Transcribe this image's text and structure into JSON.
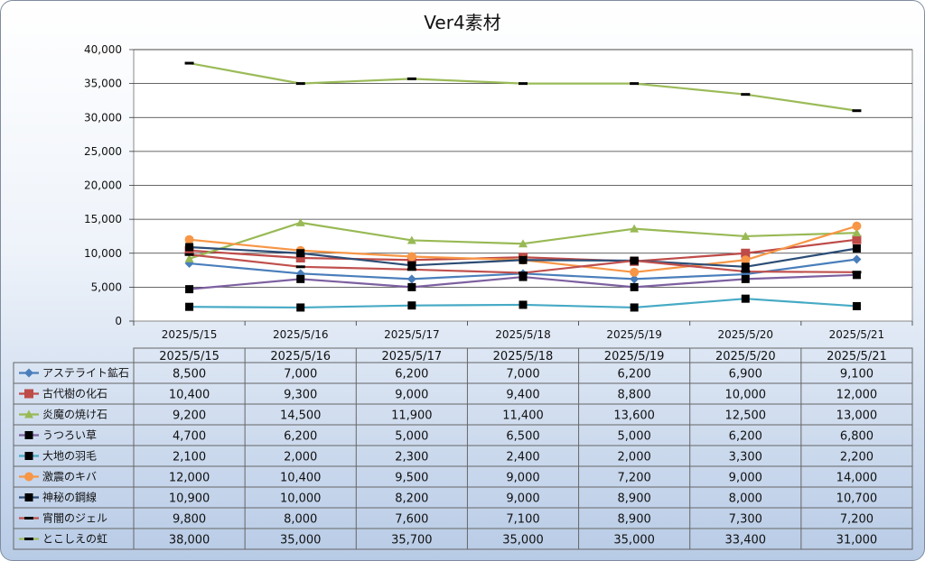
{
  "chart_data": {
    "type": "line",
    "title": "Ver4素材",
    "xlabel": "",
    "ylabel": "",
    "ylim": [
      0,
      40000
    ],
    "yticks": [
      "0",
      "5,000",
      "10,000",
      "15,000",
      "20,000",
      "25,000",
      "30,000",
      "35,000",
      "40,000"
    ],
    "categories": [
      "2025/5/15",
      "2025/5/16",
      "2025/5/17",
      "2025/5/18",
      "2025/5/19",
      "2025/5/20",
      "2025/5/21"
    ],
    "grid": "horizontal",
    "legend": "data-table",
    "series": [
      {
        "name": "アステライト鉱石",
        "color": "#4a7ebb",
        "marker": "diamond",
        "values": [
          8500,
          7000,
          6200,
          7000,
          6200,
          6900,
          9100
        ],
        "display": [
          "8,500",
          "7,000",
          "6,200",
          "7,000",
          "6,200",
          "6,900",
          "9,100"
        ]
      },
      {
        "name": "古代樹の化石",
        "color": "#be4b48",
        "marker": "square",
        "values": [
          10400,
          9300,
          9000,
          9400,
          8800,
          10000,
          12000
        ],
        "display": [
          "10,400",
          "9,300",
          "9,000",
          "9,400",
          "8,800",
          "10,000",
          "12,000"
        ]
      },
      {
        "name": "炎魔の焼け石",
        "color": "#98b954",
        "marker": "triangle",
        "values": [
          9200,
          14500,
          11900,
          11400,
          13600,
          12500,
          13000
        ],
        "display": [
          "9,200",
          "14,500",
          "11,900",
          "11,400",
          "13,600",
          "12,500",
          "13,000"
        ]
      },
      {
        "name": "うつろい草",
        "color": "#7d60a0",
        "marker": "blacksquare",
        "values": [
          4700,
          6200,
          5000,
          6500,
          5000,
          6200,
          6800
        ],
        "display": [
          "4,700",
          "6,200",
          "5,000",
          "6,500",
          "5,000",
          "6,200",
          "6,800"
        ]
      },
      {
        "name": "大地の羽毛",
        "color": "#46aac5",
        "marker": "blacksquare",
        "values": [
          2100,
          2000,
          2300,
          2400,
          2000,
          3300,
          2200
        ],
        "display": [
          "2,100",
          "2,000",
          "2,300",
          "2,400",
          "2,000",
          "3,300",
          "2,200"
        ]
      },
      {
        "name": "激震のキバ",
        "color": "#f79646",
        "marker": "circle",
        "values": [
          12000,
          10400,
          9500,
          9000,
          7200,
          9000,
          14000
        ],
        "display": [
          "12,000",
          "10,400",
          "9,500",
          "9,000",
          "7,200",
          "9,000",
          "14,000"
        ]
      },
      {
        "name": "神秘の鋼線",
        "color": "#2c4d75",
        "marker": "blacksquare",
        "values": [
          10900,
          10000,
          8200,
          9000,
          8900,
          8000,
          10700
        ],
        "display": [
          "10,900",
          "10,000",
          "8,200",
          "9,000",
          "8,900",
          "8,000",
          "10,700"
        ]
      },
      {
        "name": "宵闇のジェル",
        "color": "#c0504d",
        "marker": "dash",
        "values": [
          9800,
          8000,
          7600,
          7100,
          8900,
          7300,
          7200
        ],
        "display": [
          "9,800",
          "8,000",
          "7,600",
          "7,100",
          "8,900",
          "7,300",
          "7,200"
        ]
      },
      {
        "name": "とこしえの虹",
        "color": "#9bbb59",
        "marker": "dash",
        "values": [
          38000,
          35000,
          35700,
          35000,
          35000,
          33400,
          31000
        ],
        "display": [
          "38,000",
          "35,000",
          "35,700",
          "35,000",
          "35,000",
          "33,400",
          "31,000"
        ]
      }
    ]
  }
}
